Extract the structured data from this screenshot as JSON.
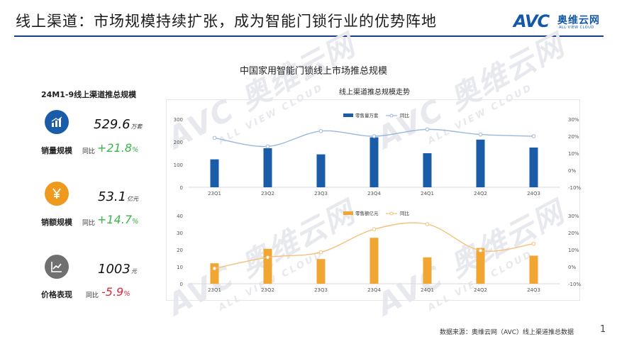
{
  "header": {
    "title": "线上渠道：市场规模持续扩张，成为智能门锁行业的优势阵地"
  },
  "logo": {
    "avc": "AVC",
    "cn": "奥维云网",
    "en": "ALL VIEW CLOUD",
    "brand_color": "#1558a7"
  },
  "watermark": {
    "main": "AVC 奥维云网",
    "sub": "ALL VIEW CLOUD"
  },
  "main_title": "中国家用智能门锁线上市场推总规模",
  "left": {
    "heading": "24M1-9线上渠道推总规模",
    "kpis": [
      {
        "label": "销量规模",
        "value": "529.6",
        "unit": "万套",
        "yoy_label": "同比",
        "yoy": "+21.8",
        "yoy_unit": "%",
        "icon": "bar-chart-icon",
        "icon_color": "#1a5ca8",
        "trend": "pos"
      },
      {
        "label": "销额规模",
        "value": "53.1",
        "unit": "亿元",
        "yoy_label": "同比",
        "yoy": "+14.7",
        "yoy_unit": "%",
        "icon": "yen-icon",
        "icon_color": "#ee9a1e",
        "trend": "pos"
      },
      {
        "label": "价格表现",
        "value": "1003",
        "unit": "元",
        "yoy_label": "同比",
        "yoy": "-5.9",
        "yoy_unit": "%",
        "icon": "line-chart-icon",
        "icon_color": "#707070",
        "trend": "neg"
      }
    ]
  },
  "chart_subtitle": "线上渠道推总规模走势",
  "source": "数据来源：奥维云网（AVC）线上渠道推总数据",
  "page_number": "1",
  "chart_data": [
    {
      "type": "bar+line",
      "title": "",
      "categories": [
        "23Q1",
        "23Q2",
        "23Q3",
        "23Q4",
        "24Q1",
        "24Q2",
        "24Q3"
      ],
      "series": [
        {
          "name": "零售量万套",
          "type": "bar",
          "axis": "left",
          "color": "#1a5ca8",
          "values": [
            123,
            172,
            145,
            220,
            150,
            210,
            175
          ]
        },
        {
          "name": "同比",
          "type": "line",
          "axis": "right",
          "color": "#9bb8dc",
          "values": [
            0.19,
            0.14,
            0.23,
            0.2,
            0.24,
            0.21,
            0.2
          ]
        }
      ],
      "y_left": {
        "ticks": [
          "0",
          "100",
          "200",
          "300"
        ],
        "lim": [
          0,
          300
        ]
      },
      "y_right": {
        "ticks": [
          "-10%",
          "0%",
          "10%",
          "20%",
          "30%"
        ],
        "lim": [
          -0.1,
          0.3
        ]
      },
      "legend": "top-center",
      "grid": false
    },
    {
      "type": "bar+line",
      "title": "",
      "categories": [
        "23Q1",
        "23Q2",
        "23Q3",
        "23Q4",
        "24Q1",
        "24Q2",
        "24Q3"
      ],
      "series": [
        {
          "name": "零售额亿元",
          "type": "bar",
          "axis": "left",
          "color": "#f0a630",
          "values": [
            12,
            20.5,
            14.5,
            27,
            15.5,
            21,
            16.5
          ]
        },
        {
          "name": "同比",
          "type": "line",
          "axis": "right",
          "color": "#f4c07a",
          "values": [
            -0.01,
            0.055,
            0.085,
            0.22,
            0.25,
            0.095,
            0.135
          ]
        }
      ],
      "y_left": {
        "ticks": [
          "0",
          "10",
          "20",
          "30",
          "40"
        ],
        "lim": [
          0,
          40
        ]
      },
      "y_right": {
        "ticks": [
          "-10%",
          "0%",
          "10%",
          "20%",
          "30%"
        ],
        "lim": [
          -0.1,
          0.3
        ]
      },
      "legend": "top-center",
      "grid": false
    }
  ]
}
